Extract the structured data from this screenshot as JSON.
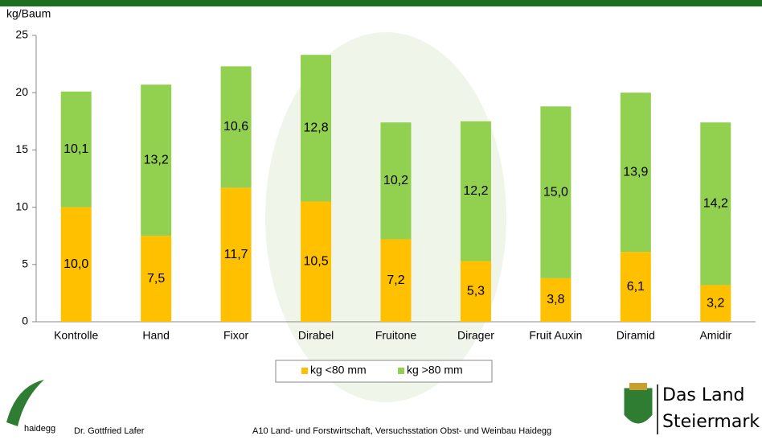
{
  "chart_data": {
    "type": "stacked_bar",
    "y_label": "kg/Baum",
    "categories": [
      "Kontrolle",
      "Hand",
      "Fixor",
      "Dirabel",
      "Fruitone",
      "Dirager",
      "Fruit Auxin",
      "Diramid",
      "Amidir"
    ],
    "series": [
      {
        "name": "kg <80 mm",
        "color": "#FFC000",
        "values": [
          10.0,
          7.5,
          11.7,
          10.5,
          7.2,
          5.3,
          3.8,
          6.1,
          3.2
        ],
        "value_labels": [
          "10,0",
          "7,5",
          "11,7",
          "10,5",
          "7,2",
          "5,3",
          "3,8",
          "6,1",
          "3,2"
        ]
      },
      {
        "name": "kg >80 mm",
        "color": "#92D050",
        "values": [
          10.1,
          13.2,
          10.6,
          12.8,
          10.2,
          12.2,
          15.0,
          13.9,
          14.2
        ],
        "value_labels": [
          "10,1",
          "13,2",
          "10,6",
          "12,8",
          "10,2",
          "12,2",
          "15,0",
          "13,9",
          "14,2"
        ]
      }
    ],
    "ylim": [
      0,
      25
    ],
    "yticks": [
      0,
      5,
      10,
      15,
      20,
      25
    ],
    "legend": "bottom"
  },
  "footer": {
    "logo_text": "haidegg",
    "author": "Dr. Gottfried Lafer",
    "institution": "A10 Land- und Forstwirtschaft, Versuchsstation Obst- und Weinbau Haidegg",
    "brand_line1": "Das Land",
    "brand_line2": "Steiermark"
  }
}
